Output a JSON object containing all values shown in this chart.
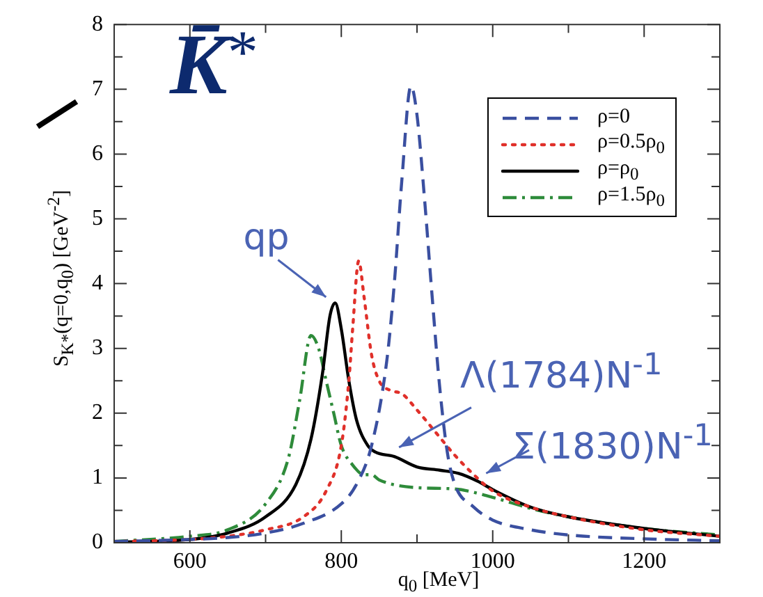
{
  "chart_data": {
    "type": "line",
    "title": "K̄*",
    "xlabel": "q$_{0}$ [MeV]",
    "ylabel": "S$_{K*}$(q=0,q$_{0}$) [GeV$^{-2}$]",
    "xlim": [
      500,
      1300
    ],
    "xticks": [
      {
        "value": 500,
        "label": null
      },
      600,
      {
        "value": 700,
        "label": null
      },
      800,
      {
        "value": 900,
        "label": null
      },
      1000,
      {
        "value": 1100,
        "label": null
      },
      1200,
      {
        "value": 1300,
        "label": null
      }
    ],
    "ylim": [
      0,
      8
    ],
    "yticks": [
      0,
      {
        "value": 0.5,
        "label": null
      },
      1,
      {
        "value": 1.5,
        "label": null
      },
      2,
      {
        "value": 2.5,
        "label": null
      },
      3,
      {
        "value": 3.5,
        "label": null
      },
      4,
      {
        "value": 4.5,
        "label": null
      },
      5,
      {
        "value": 5.5,
        "label": null
      },
      6,
      {
        "value": 6.5,
        "label": null
      },
      7,
      {
        "value": 7.5,
        "label": null
      },
      8
    ],
    "grid": false,
    "legend": "top right",
    "marker": "none",
    "series": [
      {
        "name": "ρ=0",
        "color": "#3a4fa0",
        "line_style": "dashed",
        "x": [
          500,
          600,
          650,
          700,
          750,
          800,
          820,
          840,
          860,
          870,
          880,
          892,
          900,
          910,
          920,
          930,
          940,
          950,
          975,
          1000,
          1050,
          1100,
          1200,
          1300
        ],
        "values": [
          0.02,
          0.05,
          0.08,
          0.15,
          0.3,
          0.6,
          0.9,
          1.5,
          2.8,
          4.0,
          5.6,
          7.05,
          6.6,
          5.3,
          3.8,
          2.4,
          1.4,
          0.9,
          0.55,
          0.35,
          0.2,
          0.12,
          0.06,
          0.03
        ]
      },
      {
        "name": "ρ=0.5ρ$_{0}$",
        "color": "#e0302a",
        "line_style": "dotted",
        "x": [
          500,
          600,
          650,
          700,
          750,
          780,
          800,
          810,
          815,
          823,
          830,
          840,
          850,
          865,
          880,
          900,
          925,
          950,
          975,
          1000,
          1050,
          1100,
          1200,
          1300
        ],
        "values": [
          0.02,
          0.05,
          0.1,
          0.2,
          0.4,
          0.8,
          1.5,
          2.5,
          3.3,
          4.35,
          3.8,
          2.9,
          2.5,
          2.35,
          2.3,
          2.05,
          1.7,
          1.35,
          1.05,
          0.8,
          0.55,
          0.4,
          0.2,
          0.1
        ]
      },
      {
        "name": "ρ=ρ$_{0}$",
        "color": "#000000",
        "line_style": "solid",
        "x": [
          500,
          600,
          650,
          700,
          740,
          760,
          775,
          785,
          792,
          800,
          810,
          820,
          835,
          845,
          870,
          900,
          930,
          955,
          980,
          1000,
          1050,
          1100,
          1200,
          1300
        ],
        "values": [
          0.01,
          0.05,
          0.15,
          0.4,
          0.9,
          1.6,
          2.6,
          3.5,
          3.7,
          3.3,
          2.5,
          1.9,
          1.5,
          1.4,
          1.33,
          1.17,
          1.12,
          1.07,
          0.95,
          0.82,
          0.55,
          0.4,
          0.22,
          0.1
        ]
      },
      {
        "name": "ρ=1.5ρ$_{0}$",
        "color": "#2e8b3a",
        "line_style": "dashdot",
        "x": [
          500,
          600,
          650,
          700,
          730,
          745,
          760,
          770,
          780,
          790,
          800,
          815,
          830,
          840,
          850,
          900,
          950,
          1000,
          1050,
          1100,
          1200,
          1300
        ],
        "values": [
          0.02,
          0.1,
          0.2,
          0.6,
          1.3,
          2.2,
          3.2,
          3.0,
          2.5,
          2.0,
          1.5,
          1.2,
          1.05,
          1.05,
          0.97,
          0.85,
          0.83,
          0.7,
          0.53,
          0.4,
          0.22,
          0.12
        ]
      }
    ],
    "annotations": [
      {
        "text": "qp",
        "x": 790,
        "y": 3.7
      },
      {
        "text": "Λ(1784)N$^{-1}$",
        "x": 865,
        "y": 1.4
      },
      {
        "text": "Σ(1830)N$^{-1}$",
        "x": 980,
        "y": 1.0
      }
    ]
  }
}
